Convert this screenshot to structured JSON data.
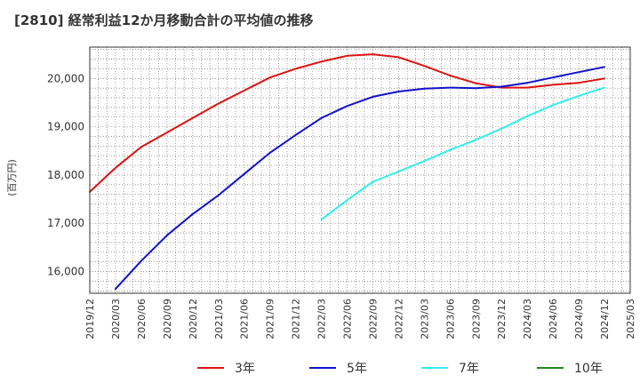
{
  "chart_data": {
    "type": "line",
    "title": "[2810]  経常利益12か月移動合計の平均値の推移",
    "ylabel": "(百万円)",
    "xlabel": "",
    "ylim": [
      15550,
      20650
    ],
    "grid": true,
    "legend_position": "bottom",
    "x_ticks": [
      "2019/12",
      "2020/03",
      "2020/06",
      "2020/09",
      "2020/12",
      "2021/03",
      "2021/06",
      "2021/09",
      "2021/12",
      "2022/03",
      "2022/06",
      "2022/09",
      "2022/12",
      "2023/03",
      "2023/06",
      "2023/09",
      "2023/12",
      "2024/03",
      "2024/06",
      "2024/09",
      "2024/12",
      "2025/03"
    ],
    "y_ticks": [
      16000,
      17000,
      18000,
      19000,
      20000
    ],
    "y_tick_labels": [
      "16,000",
      "17,000",
      "18,000",
      "19,000",
      "20,000"
    ],
    "series": [
      {
        "name": "3年",
        "color": "#dd1111",
        "values": [
          [
            "2019/12",
            17650
          ],
          [
            "2020/03",
            18150
          ],
          [
            "2020/06",
            18580
          ],
          [
            "2020/09",
            18880
          ],
          [
            "2020/12",
            19180
          ],
          [
            "2021/03",
            19480
          ],
          [
            "2021/06",
            19750
          ],
          [
            "2021/09",
            20020
          ],
          [
            "2021/12",
            20200
          ],
          [
            "2022/03",
            20350
          ],
          [
            "2022/06",
            20470
          ],
          [
            "2022/09",
            20500
          ],
          [
            "2022/12",
            20440
          ],
          [
            "2023/03",
            20260
          ],
          [
            "2023/06",
            20060
          ],
          [
            "2023/09",
            19900
          ],
          [
            "2023/12",
            19810
          ],
          [
            "2024/03",
            19810
          ],
          [
            "2024/06",
            19870
          ],
          [
            "2024/09",
            19910
          ],
          [
            "2024/12",
            20000
          ]
        ]
      },
      {
        "name": "5年",
        "color": "#1111cc",
        "values": [
          [
            "2020/03",
            15640
          ],
          [
            "2020/06",
            16220
          ],
          [
            "2020/09",
            16750
          ],
          [
            "2020/12",
            17190
          ],
          [
            "2021/03",
            17580
          ],
          [
            "2021/06",
            18020
          ],
          [
            "2021/09",
            18460
          ],
          [
            "2021/12",
            18830
          ],
          [
            "2022/03",
            19180
          ],
          [
            "2022/06",
            19430
          ],
          [
            "2022/09",
            19620
          ],
          [
            "2022/12",
            19730
          ],
          [
            "2023/03",
            19790
          ],
          [
            "2023/06",
            19810
          ],
          [
            "2023/09",
            19800
          ],
          [
            "2023/12",
            19830
          ],
          [
            "2024/03",
            19910
          ],
          [
            "2024/06",
            20020
          ],
          [
            "2024/09",
            20130
          ],
          [
            "2024/12",
            20240
          ]
        ]
      },
      {
        "name": "7年",
        "color": "#33eeee",
        "values": [
          [
            "2022/03",
            17080
          ],
          [
            "2022/06",
            17480
          ],
          [
            "2022/09",
            17860
          ],
          [
            "2022/12",
            18070
          ],
          [
            "2023/03",
            18290
          ],
          [
            "2023/06",
            18520
          ],
          [
            "2023/09",
            18730
          ],
          [
            "2023/12",
            18960
          ],
          [
            "2024/03",
            19220
          ],
          [
            "2024/06",
            19450
          ],
          [
            "2024/09",
            19640
          ],
          [
            "2024/12",
            19810
          ]
        ]
      },
      {
        "name": "10年",
        "color": "#228822",
        "values": []
      }
    ]
  }
}
